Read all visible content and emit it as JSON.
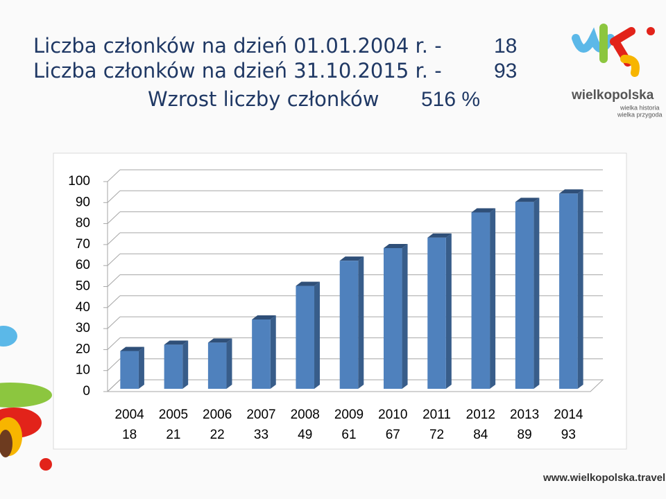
{
  "header": {
    "line1_label": "Liczba członków na dzień 01.01.2004 r. -",
    "line1_value": "18",
    "line2_label": "Liczba członków na dzień 31.10.2015 r. -",
    "line2_value": "93",
    "line3_label": "Wzrost liczby członków",
    "line3_value": "516 %"
  },
  "logo": {
    "name": "wielkopolska",
    "tagline1": "wielka historia",
    "tagline2": "wielka przygoda"
  },
  "footer": "www.wielkopolska.travel",
  "chart_data": {
    "type": "bar",
    "categories": [
      "2004",
      "2005",
      "2006",
      "2007",
      "2008",
      "2009",
      "2010",
      "2011",
      "2012",
      "2013",
      "2014"
    ],
    "values": [
      18,
      21,
      22,
      33,
      49,
      61,
      67,
      72,
      84,
      89,
      93
    ],
    "color": "#4f81bd",
    "ylim": [
      0,
      100
    ],
    "yticks": [
      0,
      10,
      20,
      30,
      40,
      50,
      60,
      70,
      80,
      90,
      100
    ],
    "grid": true
  }
}
